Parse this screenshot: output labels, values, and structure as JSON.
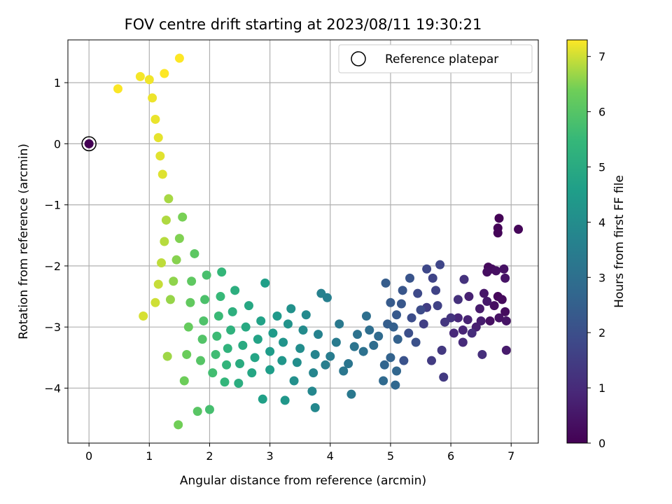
{
  "chart_data": {
    "type": "scatter",
    "title": "FOV centre drift starting at 2023/08/11 19:30:21",
    "xlabel": "Angular distance from reference (arcmin)",
    "ylabel": "Rotation from reference (arcmin)",
    "xlim": [
      -0.35,
      7.45
    ],
    "ylim": [
      -4.9,
      1.7
    ],
    "xticks": [
      0,
      1,
      2,
      3,
      4,
      5,
      6,
      7
    ],
    "yticks": [
      -4,
      -3,
      -2,
      -1,
      0,
      1
    ],
    "grid": true,
    "colormap": "viridis",
    "colorbar": {
      "label": "Hours from first FF file",
      "range": [
        0,
        7.3
      ],
      "ticks": [
        0,
        1,
        2,
        3,
        4,
        5,
        6,
        7
      ]
    },
    "legend": {
      "position": "top-right",
      "entries": [
        {
          "label": "Reference platepar",
          "marker": "open-circle"
        }
      ]
    },
    "reference_point": {
      "x": 0,
      "y": 0,
      "hours": 0
    },
    "points": [
      [
        6.8,
        -1.22,
        0.05
      ],
      [
        6.78,
        -1.38,
        0.08
      ],
      [
        6.78,
        -1.46,
        0.1
      ],
      [
        7.12,
        -1.4,
        0.12
      ],
      [
        6.62,
        -2.02,
        0.2
      ],
      [
        6.68,
        -2.05,
        0.25
      ],
      [
        6.6,
        -2.1,
        0.3
      ],
      [
        6.75,
        -2.08,
        0.35
      ],
      [
        6.88,
        -2.05,
        0.4
      ],
      [
        6.9,
        -2.2,
        0.45
      ],
      [
        6.78,
        -2.5,
        0.15
      ],
      [
        6.85,
        -2.55,
        0.2
      ],
      [
        6.9,
        -2.75,
        0.25
      ],
      [
        6.72,
        -2.65,
        0.3
      ],
      [
        6.65,
        -2.9,
        0.35
      ],
      [
        6.8,
        -2.85,
        0.4
      ],
      [
        6.92,
        -2.9,
        0.45
      ],
      [
        6.55,
        -2.45,
        0.5
      ],
      [
        6.6,
        -2.58,
        0.55
      ],
      [
        6.48,
        -2.7,
        0.6
      ],
      [
        6.5,
        -2.9,
        0.65
      ],
      [
        6.42,
        -3.0,
        0.7
      ],
      [
        6.3,
        -2.5,
        0.75
      ],
      [
        6.28,
        -2.88,
        0.8
      ],
      [
        6.2,
        -3.05,
        0.85
      ],
      [
        6.12,
        -2.85,
        0.9
      ],
      [
        6.05,
        -3.1,
        0.95
      ],
      [
        6.2,
        -3.25,
        1.0
      ],
      [
        6.35,
        -3.1,
        1.05
      ],
      [
        6.52,
        -3.45,
        1.1
      ],
      [
        6.92,
        -3.38,
        0.6
      ],
      [
        6.12,
        -2.55,
        1.15
      ],
      [
        6.22,
        -2.22,
        1.2
      ],
      [
        6.0,
        -2.85,
        1.25
      ],
      [
        5.9,
        -2.92,
        1.3
      ],
      [
        5.85,
        -3.38,
        1.35
      ],
      [
        5.88,
        -3.82,
        1.4
      ],
      [
        5.68,
        -3.55,
        1.45
      ],
      [
        5.6,
        -2.68,
        1.5
      ],
      [
        5.55,
        -2.95,
        1.55
      ],
      [
        5.78,
        -2.65,
        1.6
      ],
      [
        5.75,
        -2.4,
        1.65
      ],
      [
        5.7,
        -2.2,
        1.7
      ],
      [
        5.82,
        -1.98,
        1.75
      ],
      [
        5.6,
        -2.05,
        1.8
      ],
      [
        5.45,
        -2.45,
        1.85
      ],
      [
        5.5,
        -2.72,
        1.9
      ],
      [
        5.35,
        -2.85,
        1.95
      ],
      [
        5.3,
        -3.1,
        2.0
      ],
      [
        5.42,
        -3.25,
        2.05
      ],
      [
        5.22,
        -3.55,
        2.1
      ],
      [
        5.32,
        -2.2,
        2.15
      ],
      [
        5.2,
        -2.4,
        2.2
      ],
      [
        5.18,
        -2.62,
        2.25
      ],
      [
        5.1,
        -2.8,
        2.3
      ],
      [
        5.0,
        -2.6,
        2.35
      ],
      [
        4.92,
        -2.28,
        2.4
      ],
      [
        4.95,
        -2.95,
        2.45
      ],
      [
        5.05,
        -3.0,
        2.5
      ],
      [
        5.12,
        -3.2,
        2.55
      ],
      [
        5.0,
        -3.5,
        2.6
      ],
      [
        4.9,
        -3.62,
        2.65
      ],
      [
        5.1,
        -3.72,
        2.7
      ],
      [
        5.08,
        -3.95,
        2.75
      ],
      [
        4.88,
        -3.88,
        2.8
      ],
      [
        4.8,
        -3.15,
        2.85
      ],
      [
        4.72,
        -3.3,
        2.9
      ],
      [
        4.65,
        -3.05,
        2.95
      ],
      [
        4.6,
        -2.82,
        3.0
      ],
      [
        4.55,
        -3.4,
        3.05
      ],
      [
        4.45,
        -3.12,
        3.1
      ],
      [
        4.4,
        -3.32,
        3.15
      ],
      [
        4.3,
        -3.6,
        3.2
      ],
      [
        4.22,
        -3.72,
        3.25
      ],
      [
        4.35,
        -4.1,
        3.3
      ],
      [
        4.15,
        -2.95,
        3.35
      ],
      [
        4.1,
        -3.25,
        3.4
      ],
      [
        4.0,
        -3.48,
        3.45
      ],
      [
        3.92,
        -3.62,
        3.5
      ],
      [
        3.95,
        -2.52,
        3.55
      ],
      [
        3.85,
        -2.45,
        3.6
      ],
      [
        3.8,
        -3.12,
        3.65
      ],
      [
        3.75,
        -3.45,
        3.7
      ],
      [
        3.72,
        -3.75,
        3.75
      ],
      [
        3.7,
        -4.05,
        3.8
      ],
      [
        3.75,
        -4.32,
        3.85
      ],
      [
        3.6,
        -2.8,
        3.9
      ],
      [
        3.55,
        -3.05,
        3.95
      ],
      [
        3.5,
        -3.35,
        4.0
      ],
      [
        3.45,
        -3.58,
        4.05
      ],
      [
        3.4,
        -3.88,
        4.1
      ],
      [
        3.35,
        -2.7,
        4.15
      ],
      [
        3.3,
        -2.95,
        4.2
      ],
      [
        3.22,
        -3.25,
        4.25
      ],
      [
        3.2,
        -3.55,
        4.3
      ],
      [
        3.25,
        -4.2,
        4.35
      ],
      [
        3.12,
        -2.82,
        4.4
      ],
      [
        3.05,
        -3.1,
        4.45
      ],
      [
        3.0,
        -3.4,
        4.5
      ],
      [
        3.0,
        -3.7,
        4.55
      ],
      [
        2.92,
        -2.28,
        4.6
      ],
      [
        2.88,
        -4.18,
        4.65
      ],
      [
        2.85,
        -2.9,
        4.7
      ],
      [
        2.8,
        -3.2,
        4.75
      ],
      [
        2.75,
        -3.5,
        4.8
      ],
      [
        2.7,
        -3.75,
        4.85
      ],
      [
        2.65,
        -2.65,
        4.9
      ],
      [
        2.6,
        -3.0,
        4.95
      ],
      [
        2.55,
        -3.3,
        5.0
      ],
      [
        2.5,
        -3.6,
        5.05
      ],
      [
        2.48,
        -3.92,
        5.1
      ],
      [
        2.42,
        -2.4,
        5.15
      ],
      [
        2.38,
        -2.75,
        5.2
      ],
      [
        2.35,
        -3.05,
        5.25
      ],
      [
        2.3,
        -3.35,
        5.3
      ],
      [
        2.28,
        -3.62,
        5.35
      ],
      [
        2.25,
        -3.9,
        5.4
      ],
      [
        2.2,
        -2.1,
        5.45
      ],
      [
        2.18,
        -2.5,
        5.5
      ],
      [
        2.15,
        -2.82,
        5.55
      ],
      [
        2.12,
        -3.15,
        5.6
      ],
      [
        2.1,
        -3.45,
        5.65
      ],
      [
        2.05,
        -3.75,
        5.7
      ],
      [
        2.0,
        -4.35,
        5.75
      ],
      [
        1.95,
        -2.15,
        5.8
      ],
      [
        1.92,
        -2.55,
        5.85
      ],
      [
        1.9,
        -2.9,
        5.9
      ],
      [
        1.88,
        -3.2,
        5.95
      ],
      [
        1.85,
        -3.55,
        6.0
      ],
      [
        1.8,
        -4.38,
        6.05
      ],
      [
        1.75,
        -1.8,
        6.1
      ],
      [
        1.7,
        -2.25,
        6.15
      ],
      [
        1.68,
        -2.6,
        6.2
      ],
      [
        1.65,
        -3.0,
        6.25
      ],
      [
        1.62,
        -3.45,
        6.3
      ],
      [
        1.58,
        -3.88,
        6.35
      ],
      [
        1.48,
        -4.6,
        6.4
      ],
      [
        1.55,
        -1.2,
        6.45
      ],
      [
        1.5,
        -1.55,
        6.5
      ],
      [
        1.45,
        -1.9,
        6.55
      ],
      [
        1.4,
        -2.25,
        6.6
      ],
      [
        1.35,
        -2.55,
        6.65
      ],
      [
        1.3,
        -3.48,
        6.7
      ],
      [
        1.32,
        -0.9,
        6.75
      ],
      [
        1.28,
        -1.25,
        6.8
      ],
      [
        1.25,
        -1.6,
        6.85
      ],
      [
        1.2,
        -1.95,
        6.9
      ],
      [
        1.15,
        -2.3,
        6.95
      ],
      [
        1.1,
        -2.6,
        7.0
      ],
      [
        0.9,
        -2.82,
        7.05
      ],
      [
        1.22,
        -0.5,
        7.1
      ],
      [
        1.18,
        -0.2,
        7.12
      ],
      [
        1.15,
        0.1,
        7.15
      ],
      [
        1.1,
        0.4,
        7.18
      ],
      [
        1.05,
        0.75,
        7.2
      ],
      [
        1.0,
        1.05,
        7.22
      ],
      [
        0.85,
        1.1,
        7.25
      ],
      [
        0.48,
        0.9,
        7.28
      ],
      [
        1.25,
        1.15,
        7.3
      ],
      [
        1.5,
        1.4,
        7.3
      ]
    ]
  }
}
